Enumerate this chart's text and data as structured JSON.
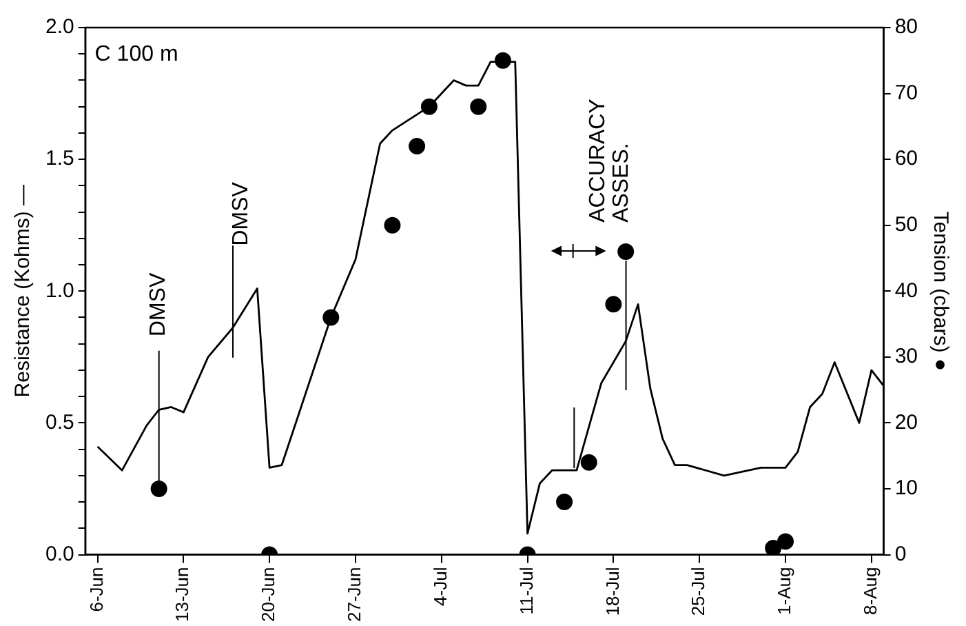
{
  "chart_data": {
    "type": "line",
    "ylabel": "Resistance (Kohms) —",
    "y2label": "Tension (cbars) ●",
    "xlim": [
      "--06-05",
      "--08-09"
    ],
    "xticks": [
      {
        "value": "--06-06",
        "label": "6-Jun"
      },
      {
        "value": "--06-13",
        "label": "13-Jun"
      },
      {
        "value": "--06-20",
        "label": "20-Jun"
      },
      {
        "value": "--06-27",
        "label": "27-Jun"
      },
      {
        "value": "--07-04",
        "label": "4-Jul"
      },
      {
        "value": "--07-11",
        "label": "11-Jul"
      },
      {
        "value": "--07-18",
        "label": "18-Jul"
      },
      {
        "value": "--07-25",
        "label": "25-Jul"
      },
      {
        "value": "--08-01",
        "label": "1-Aug"
      },
      {
        "value": "--08-08",
        "label": "8-Aug"
      }
    ],
    "ylim": [
      0,
      2
    ],
    "yticks": [
      {
        "value": 0,
        "label": "0.0"
      },
      {
        "value": 0.1,
        "label": null
      },
      {
        "value": 0.2,
        "label": null
      },
      {
        "value": 0.3,
        "label": null
      },
      {
        "value": 0.4,
        "label": null
      },
      {
        "value": 0.5,
        "label": "0.5"
      },
      {
        "value": 0.6,
        "label": null
      },
      {
        "value": 0.7,
        "label": null
      },
      {
        "value": 0.8,
        "label": null
      },
      {
        "value": 0.9,
        "label": null
      },
      {
        "value": 1,
        "label": "1.0"
      },
      {
        "value": 1.1,
        "label": null
      },
      {
        "value": 1.2,
        "label": null
      },
      {
        "value": 1.3,
        "label": null
      },
      {
        "value": 1.4,
        "label": null
      },
      {
        "value": 1.5,
        "label": "1.5"
      },
      {
        "value": 1.6,
        "label": null
      },
      {
        "value": 1.7,
        "label": null
      },
      {
        "value": 1.8,
        "label": null
      },
      {
        "value": 1.9,
        "label": null
      },
      {
        "value": 2,
        "label": "2.0"
      }
    ],
    "y2lim": [
      0,
      80
    ],
    "y2ticks": [
      0,
      10,
      20,
      30,
      40,
      50,
      60,
      70,
      80
    ],
    "grid": false,
    "legend": false,
    "series": [
      {
        "type": "line",
        "color": "#000000",
        "marker": "none",
        "line_style": "solid",
        "x": [
          "--06-06",
          "--06-08",
          "--06-10",
          "--06-11",
          "--06-12",
          "--06-13",
          "--06-15",
          "--06-17",
          "--06-19",
          "--06-20",
          "--06-21",
          "--06-25",
          "--06-27",
          "--06-29",
          "--06-30",
          "--07-03",
          "--07-05",
          "--07-06",
          "--07-07",
          "--07-08",
          "--07-10",
          "--07-11",
          "--07-12",
          "--07-13",
          "--07-15",
          "--07-17",
          "--07-19",
          "--07-20",
          "--07-21",
          "--07-22",
          "--07-23",
          "--07-24",
          "--07-27",
          "--07-30",
          "--08-01",
          "--08-02",
          "--08-03",
          "--08-04",
          "--08-05",
          "--08-07",
          "--08-08",
          "--08-09"
        ],
        "values": [
          0.41,
          0.32,
          0.49,
          0.55,
          0.56,
          0.54,
          0.75,
          0.86,
          1.01,
          0.33,
          0.34,
          0.9,
          1.12,
          1.56,
          1.61,
          1.7,
          1.8,
          1.78,
          1.78,
          1.87,
          1.87,
          0.08,
          0.27,
          0.32,
          0.32,
          0.65,
          0.81,
          0.95,
          0.63,
          0.44,
          0.34,
          0.34,
          0.3,
          0.33,
          0.33,
          0.39,
          0.56,
          0.61,
          0.73,
          0.5,
          0.7,
          0.64
        ]
      },
      {
        "type": "scatter",
        "axis": "y2",
        "color": "#000000",
        "marker": "circle",
        "x": [
          "--06-11",
          "--06-20",
          "--06-25",
          "--06-30",
          "--07-02",
          "--07-03",
          "--07-07",
          "--07-09",
          "--07-11",
          "--07-14",
          "--07-16",
          "--07-18",
          "--07-19",
          "--07-31",
          "--08-01"
        ],
        "values": [
          10,
          0,
          36,
          50,
          62,
          68,
          68,
          75,
          0,
          8,
          14,
          38,
          46,
          1,
          2
        ]
      }
    ],
    "annotations": [
      "C 100 m",
      {
        "text": "DMSV",
        "x": "--06-11",
        "y": 0.25
      },
      "DMSV",
      {
        "text": "ACCURACY ASSES.",
        "x": "--07-19",
        "y": 1.15
      }
    ]
  }
}
